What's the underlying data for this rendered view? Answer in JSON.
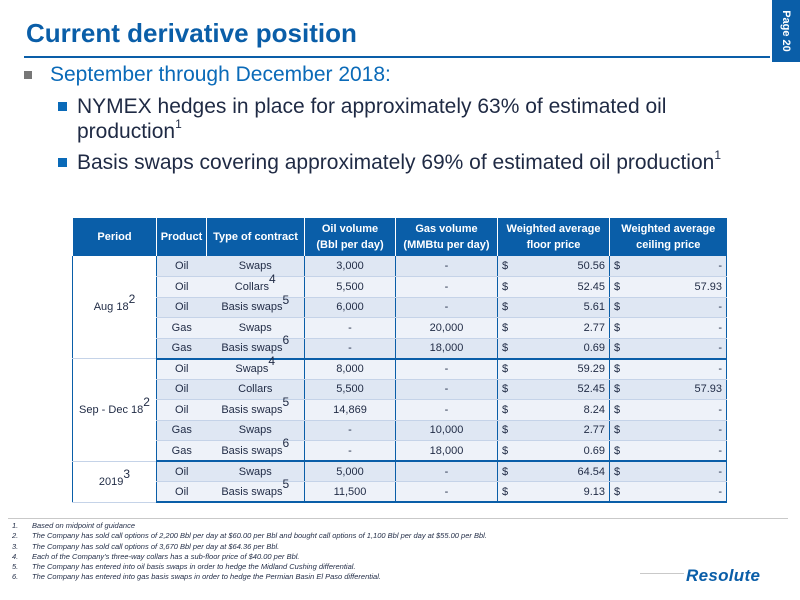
{
  "page_label": "Page 20",
  "title": "Current derivative position",
  "bullets": {
    "level1": "September through December 2018:",
    "items": [
      {
        "text": "NYMEX hedges in place for approximately 63% of estimated oil production",
        "sup": "1"
      },
      {
        "text": "Basis swaps covering approximately 69% of estimated oil production",
        "sup": "1"
      }
    ]
  },
  "table": {
    "headers": {
      "period": "Period",
      "product": "Product",
      "type": "Type of contract",
      "oil_vol_1": "Oil volume",
      "oil_vol_2": "(Bbl per day)",
      "gas_vol_1": "Gas volume",
      "gas_vol_2": "(MMBtu per day)",
      "floor_1": "Weighted average",
      "floor_2": "floor price",
      "ceiling_1": "Weighted average",
      "ceiling_2": "ceiling price"
    },
    "currency": "$",
    "groups": [
      {
        "period": "Aug 18",
        "sup": "2",
        "rows": [
          {
            "product": "Oil",
            "type": "Swaps",
            "type_sup": "",
            "oil": "3,000",
            "gas": "-",
            "floor": "50.56",
            "ceiling": "-"
          },
          {
            "product": "Oil",
            "type": "Collars",
            "type_sup": "4",
            "oil": "5,500",
            "gas": "-",
            "floor": "52.45",
            "ceiling": "57.93"
          },
          {
            "product": "Oil",
            "type": "Basis swaps",
            "type_sup": "5",
            "oil": "6,000",
            "gas": "-",
            "floor": "5.61",
            "ceiling": "-"
          },
          {
            "product": "Gas",
            "type": "Swaps",
            "type_sup": "",
            "oil": "-",
            "gas": "20,000",
            "floor": "2.77",
            "ceiling": "-"
          },
          {
            "product": "Gas",
            "type": "Basis swaps",
            "type_sup": "6",
            "oil": "-",
            "gas": "18,000",
            "floor": "0.69",
            "ceiling": "-"
          }
        ]
      },
      {
        "period": "Sep - Dec 18",
        "sup": "2",
        "rows": [
          {
            "product": "Oil",
            "type": "Swaps",
            "type_sup": "4",
            "oil": "8,000",
            "gas": "-",
            "floor": "59.29",
            "ceiling": "-"
          },
          {
            "product": "Oil",
            "type": "Collars",
            "type_sup": "",
            "oil": "5,500",
            "gas": "-",
            "floor": "52.45",
            "ceiling": "57.93"
          },
          {
            "product": "Oil",
            "type": "Basis swaps",
            "type_sup": "5",
            "oil": "14,869",
            "gas": "-",
            "floor": "8.24",
            "ceiling": "-"
          },
          {
            "product": "Gas",
            "type": "Swaps",
            "type_sup": "",
            "oil": "-",
            "gas": "10,000",
            "floor": "2.77",
            "ceiling": "-"
          },
          {
            "product": "Gas",
            "type": "Basis swaps",
            "type_sup": "6",
            "oil": "-",
            "gas": "18,000",
            "floor": "0.69",
            "ceiling": "-"
          }
        ]
      },
      {
        "period": "2019",
        "sup": "3",
        "rows": [
          {
            "product": "Oil",
            "type": "Swaps",
            "type_sup": "",
            "oil": "5,000",
            "gas": "-",
            "floor": "64.54",
            "ceiling": "-"
          },
          {
            "product": "Oil",
            "type": "Basis swaps",
            "type_sup": "5",
            "oil": "11,500",
            "gas": "-",
            "floor": "9.13",
            "ceiling": "-"
          }
        ]
      }
    ]
  },
  "footnotes": [
    {
      "num": "1.",
      "text": "Based on midpoint of guidance"
    },
    {
      "num": "2.",
      "text": "The Company has sold call options of 2,200 Bbl per day at $60.00 per Bbl and bought call options of 1,100 Bbl per day at $55.00 per Bbl."
    },
    {
      "num": "3.",
      "text": "The Company has sold call options of 3,670 Bbl per day at $64.36 per Bbl."
    },
    {
      "num": "4.",
      "text": "Each of the Company’s three-way collars has a sub-floor price of $40.00 per Bbl."
    },
    {
      "num": "5.",
      "text": "The Company has entered into oil basis swaps in order to hedge the Midland Cushing differential."
    },
    {
      "num": "6.",
      "text": "The Company has entered into gas basis swaps in order to hedge the Permian Basin El Paso differential."
    }
  ],
  "logo": "Resolute",
  "colors": {
    "brand": "#0a5ea8",
    "row_a": "#dfe7f3",
    "row_b": "#eef2f9"
  }
}
